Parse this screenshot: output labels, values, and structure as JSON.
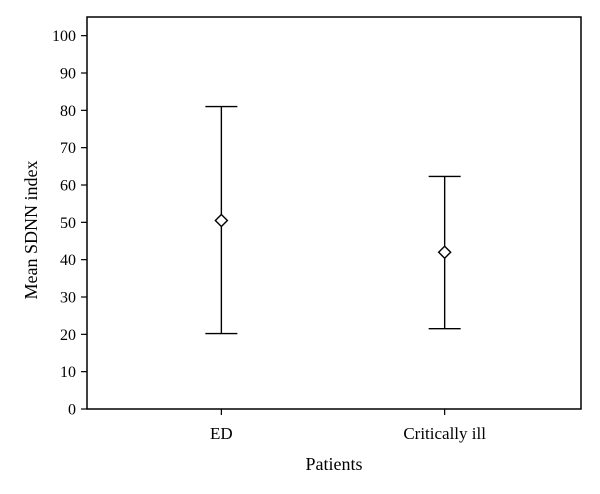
{
  "chart_data": {
    "type": "errorbar",
    "title": "",
    "xlabel": "Patients",
    "ylabel": "Mean SDNN index",
    "ylim": [
      0,
      105
    ],
    "yticks": [
      0,
      10,
      20,
      30,
      40,
      50,
      60,
      70,
      80,
      90,
      100
    ],
    "grid": false,
    "categories": [
      "ED",
      "Critically ill"
    ],
    "series": [
      {
        "name": "Mean SDNN index",
        "marker": "diamond",
        "means": [
          50.5,
          42
        ],
        "lower": [
          20.2,
          21.5
        ],
        "upper": [
          81,
          62.3
        ]
      }
    ]
  }
}
